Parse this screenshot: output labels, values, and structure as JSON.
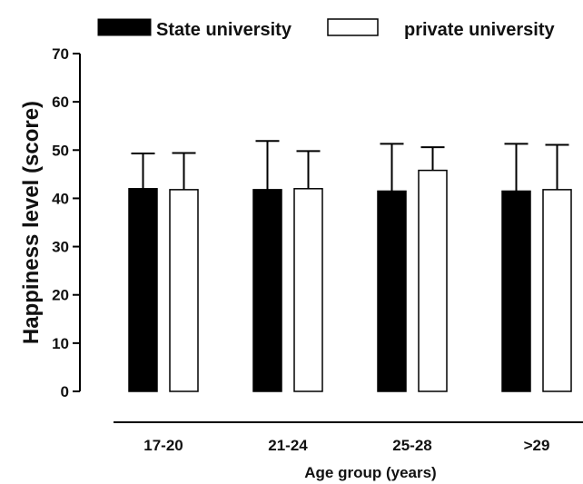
{
  "chart_data": {
    "type": "bar",
    "title": "",
    "xlabel": "Age group  (years)",
    "ylabel": "Happiness level (score)",
    "ylim": [
      0,
      70
    ],
    "yticks": [
      0,
      10,
      20,
      30,
      40,
      50,
      60,
      70
    ],
    "categories": [
      "17-20",
      "21-24",
      "25-28",
      ">29"
    ],
    "legend_position": "top",
    "error_bars": true,
    "grid": false,
    "series": [
      {
        "name": "State university",
        "fill": "#000000",
        "values": [
          42,
          41.8,
          41.5,
          41.5
        ],
        "errors": [
          7.3,
          10.1,
          9.8,
          9.8
        ]
      },
      {
        "name": "private university",
        "fill": "#ffffff",
        "values": [
          41.8,
          42,
          45.8,
          41.8
        ],
        "errors": [
          7.6,
          7.8,
          4.8,
          9.3
        ]
      }
    ]
  }
}
